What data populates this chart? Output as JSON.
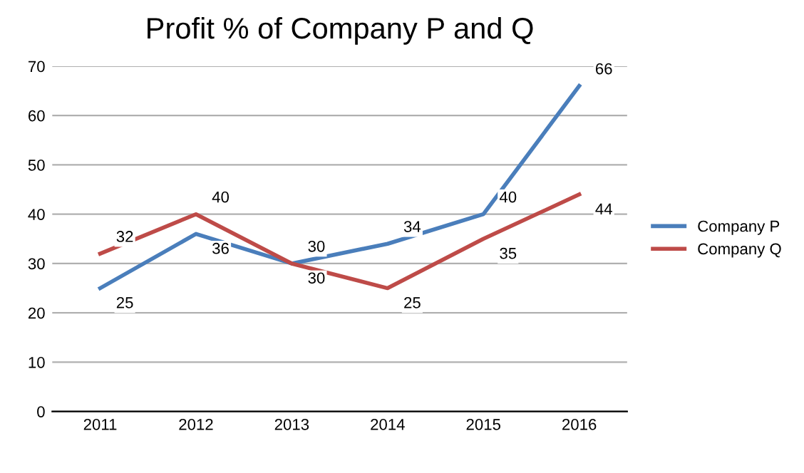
{
  "chart_data": {
    "type": "line",
    "title": "Profit % of Company P and Q",
    "categories": [
      "2011",
      "2012",
      "2013",
      "2014",
      "2015",
      "2016"
    ],
    "series": [
      {
        "name": "Company P",
        "color": "#4a7ebb",
        "values": [
          25,
          36,
          30,
          34,
          40,
          66
        ]
      },
      {
        "name": "Company Q",
        "color": "#be4b48",
        "values": [
          32,
          40,
          30,
          25,
          35,
          44
        ]
      }
    ],
    "ylim": [
      0,
      70
    ],
    "yticks": [
      0,
      10,
      20,
      30,
      40,
      50,
      60,
      70
    ],
    "grid": "y",
    "legend": "right",
    "data_labels": true,
    "marker": "none",
    "line_style": "solid"
  }
}
